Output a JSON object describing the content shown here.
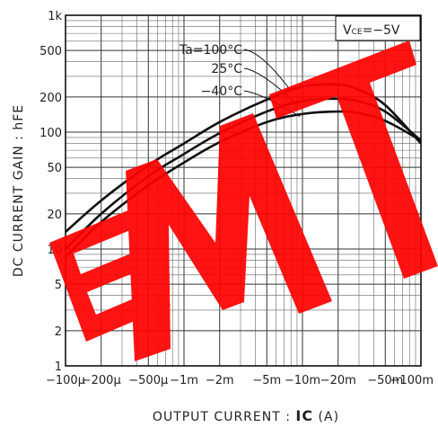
{
  "chart_data": {
    "type": "line",
    "title": "",
    "xlabel_prefix": "OUTPUT  CURRENT : ",
    "xlabel_symbol": "IC",
    "xlabel_unit": " (A)",
    "ylabel": "DC  CURRENT  GAIN : hFE",
    "condition": "VCE=−5V",
    "condition_main": "V",
    "condition_sub": "CE",
    "condition_rest": "=−5V",
    "x_scale": "log",
    "y_scale": "log",
    "xlim": [
      -0.0001,
      -0.1
    ],
    "ylim": [
      1,
      1000
    ],
    "grid": true,
    "x_ticks": [
      {
        "value": -0.0001,
        "label": "−100μ"
      },
      {
        "value": -0.0002,
        "label": "−200μ"
      },
      {
        "value": -0.0005,
        "label": "−500μ"
      },
      {
        "value": -0.001,
        "label": "−1m"
      },
      {
        "value": -0.002,
        "label": "−2m"
      },
      {
        "value": -0.005,
        "label": "−5m"
      },
      {
        "value": -0.01,
        "label": "−10m"
      },
      {
        "value": -0.02,
        "label": "−20m"
      },
      {
        "value": -0.05,
        "label": "−50m"
      },
      {
        "value": -0.1,
        "label": "−100m"
      }
    ],
    "y_ticks": [
      {
        "value": 1,
        "label": "1"
      },
      {
        "value": 2,
        "label": "2"
      },
      {
        "value": 5,
        "label": "5"
      },
      {
        "value": 10,
        "label": "10"
      },
      {
        "value": 20,
        "label": "20"
      },
      {
        "value": 50,
        "label": "50"
      },
      {
        "value": 100,
        "label": "100"
      },
      {
        "value": 200,
        "label": "200"
      },
      {
        "value": 500,
        "label": "500"
      },
      {
        "value": 1000,
        "label": "1k"
      }
    ],
    "series": [
      {
        "name": "Ta=100°C",
        "x": [
          -0.0001,
          -0.0002,
          -0.0005,
          -0.001,
          -0.002,
          -0.005,
          -0.01,
          -0.02,
          -0.03,
          -0.05,
          -0.1
        ],
        "y": [
          14,
          26,
          52,
          80,
          122,
          190,
          245,
          255,
          230,
          170,
          80
        ]
      },
      {
        "name": "25°C",
        "x": [
          -0.0001,
          -0.0002,
          -0.0005,
          -0.001,
          -0.002,
          -0.005,
          -0.01,
          -0.02,
          -0.03,
          -0.05,
          -0.1
        ],
        "y": [
          10,
          20,
          42,
          65,
          98,
          150,
          185,
          193,
          183,
          150,
          85
        ]
      },
      {
        "name": "−40°C",
        "x": [
          -0.0001,
          -0.0002,
          -0.0005,
          -0.001,
          -0.002,
          -0.005,
          -0.01,
          -0.02,
          -0.03,
          -0.05,
          -0.1
        ],
        "y": [
          8.5,
          17,
          35,
          55,
          82,
          122,
          143,
          150,
          145,
          125,
          85
        ]
      }
    ],
    "watermark": "EMT",
    "watermark_color": "#ff0000"
  }
}
